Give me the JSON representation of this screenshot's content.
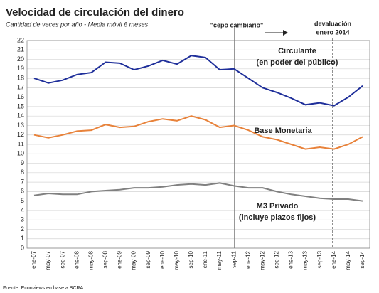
{
  "chart_data": {
    "type": "line",
    "title": "Velocidad de circulación del dinero",
    "subtitle": "Cantidad de veces por año - Media móvil 6 meses",
    "source": "Fuente: Econviews en base a BCRA",
    "annotations": [
      "\"cepo cambiario\"",
      "devaluación",
      "enero 2014"
    ],
    "categories": [
      "ene-07",
      "may-07",
      "sep-07",
      "ene-08",
      "may-08",
      "sep-08",
      "ene-09",
      "may-09",
      "sep-09",
      "ene-10",
      "may-10",
      "sep-10",
      "ene-11",
      "may-11",
      "sep-11",
      "ene-12",
      "may-12",
      "sep-12",
      "ene-13",
      "may-13",
      "sep-13",
      "ene-14",
      "may-14",
      "sep-14"
    ],
    "series": [
      {
        "name": "Circulante",
        "note": "(en poder del público)",
        "color": "#1f2f9a",
        "values": [
          18.0,
          17.5,
          17.8,
          18.4,
          18.6,
          19.7,
          19.6,
          18.9,
          19.3,
          19.9,
          19.5,
          20.4,
          20.2,
          18.9,
          19.0,
          18.0,
          17.0,
          16.5,
          15.9,
          15.2,
          15.4,
          15.1,
          16.0,
          17.2
        ]
      },
      {
        "name": "Base Monetaria",
        "color": "#e8823a",
        "values": [
          12.0,
          11.7,
          12.0,
          12.4,
          12.5,
          13.1,
          12.8,
          12.9,
          13.4,
          13.7,
          13.5,
          14.0,
          13.6,
          12.8,
          13.0,
          12.5,
          11.8,
          11.5,
          11.0,
          10.5,
          10.7,
          10.5,
          11.0,
          11.8
        ]
      },
      {
        "name": "M3 Privado",
        "note": "(incluye plazos fijos)",
        "color": "#808080",
        "values": [
          5.6,
          5.8,
          5.7,
          5.7,
          6.0,
          6.1,
          6.2,
          6.4,
          6.4,
          6.5,
          6.7,
          6.8,
          6.7,
          6.9,
          6.6,
          6.4,
          6.4,
          6.0,
          5.7,
          5.5,
          5.3,
          5.2,
          5.2,
          5.0
        ]
      }
    ],
    "ylim": [
      0,
      22
    ],
    "yticks": [
      0,
      1,
      2,
      3,
      4,
      5,
      6,
      7,
      8,
      9,
      10,
      11,
      12,
      13,
      14,
      15,
      16,
      17,
      18,
      19,
      20,
      21,
      22
    ],
    "grid": true
  }
}
